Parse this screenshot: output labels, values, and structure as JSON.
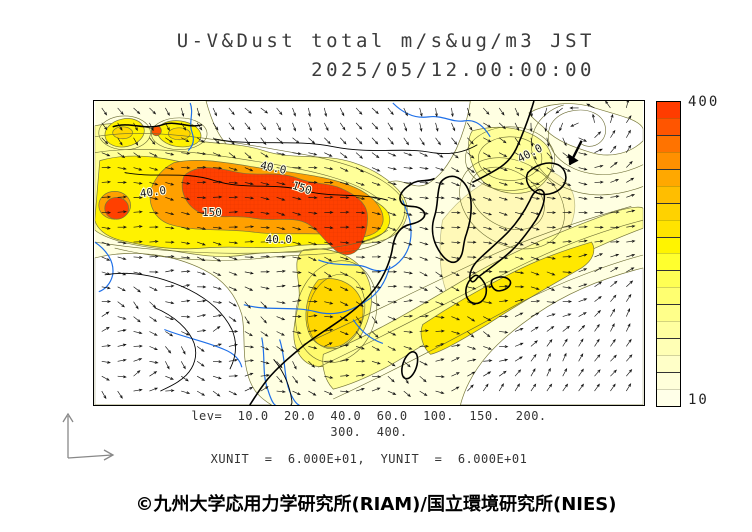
{
  "header": {
    "line1": "U-V&Dust total m/s&ug/m3 JST",
    "line2": "2025/05/12.00:00:00"
  },
  "chart_data": {
    "type": "heatmap",
    "title": "U-V&Dust total m/s&ug/m3 JST",
    "timestamp": "2025/05/12.00:00:00",
    "variable_units": "m/s & ug/m3",
    "contour_levels": [
      10.0,
      20.0,
      40.0,
      60.0,
      100,
      150,
      200,
      300,
      400
    ],
    "colorbar": {
      "max_label": "400",
      "min_label": "10",
      "position": "right",
      "colors_top_to_bottom": [
        "#FF3C00",
        "#FF5500",
        "#FF7300",
        "#FF9000",
        "#FFA800",
        "#FFBE00",
        "#FFD200",
        "#FFE400",
        "#FFF400",
        "#FFFF2E",
        "#FFFF54",
        "#FFFF70",
        "#FFFF8A",
        "#FFFFA0",
        "#FFFFB5",
        "#FFFFC8",
        "#FFFFDA",
        "#FFFFE8"
      ],
      "xunit": "6.000E+01",
      "yunit": "6.000E+01"
    }
  },
  "map_labels": [
    "40.0",
    "150",
    "40.0",
    "150",
    "40.0",
    "40.0"
  ],
  "annotations": {
    "lev_line1": "lev=  10.0  20.0  40.0  60.0  100.  150.  200.",
    "lev_line2": "300.  400.",
    "units_line": "XUNIT  =  6.000E+01,  YUNIT  =  6.000E+01"
  },
  "footer": {
    "copyright": "©九州大学応用力学研究所(RIAM)/国立環境研究所(NIES)"
  },
  "colors": {
    "dust_low": "#FFFFE2",
    "dust_mid": "#FFF200",
    "dust_high": "#FFA000",
    "dust_max": "#FF4000",
    "river": "#1E6FE8",
    "coast": "#000000",
    "contour": "#6b6b33"
  }
}
